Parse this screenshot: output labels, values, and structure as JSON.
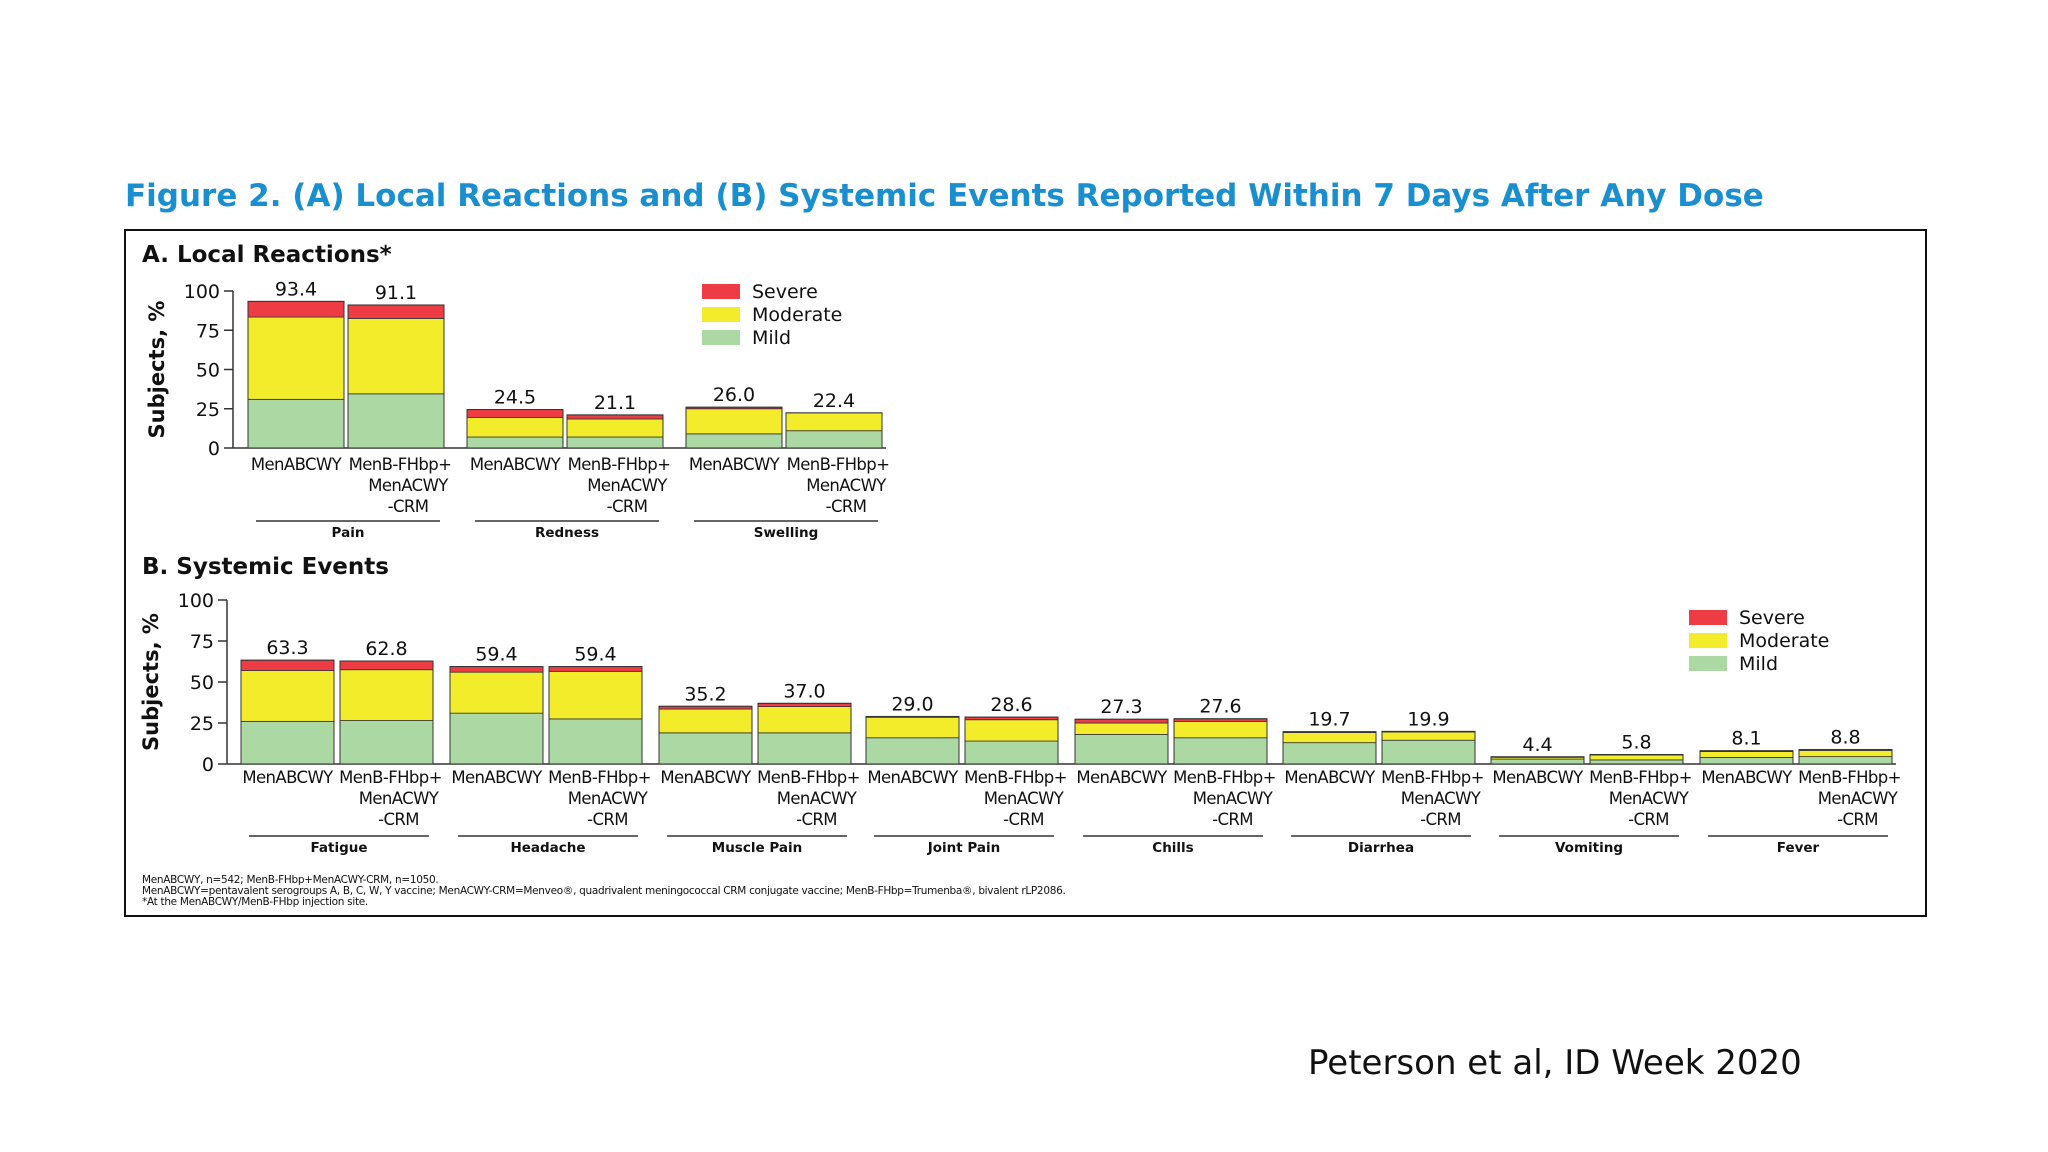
{
  "figure_title": "Figure 2. (A) Local Reactions and (B) Systemic Events Reported Within 7 Days After Any Dose",
  "citation": "Peterson et al, ID Week 2020",
  "colors": {
    "severe": "#ee3c45",
    "moderate": "#f2ec2b",
    "mild": "#acd8a3",
    "title": "#1a8fd0"
  },
  "legend": [
    "Severe",
    "Moderate",
    "Mild"
  ],
  "footnotes": [
    "MenABCWY, n=542; MenB-FHbp+MenACWY-CRM, n=1050.",
    "MenABCWY=pentavalent serogroups A, B, C, W, Y vaccine; MenACWY-CRM=Menveo®, quadrivalent meningococcal CRM conjugate vaccine; MenB-FHbp=Trumenba®, bivalent rLP2086.",
    "*At the MenABCWY/MenB-FHbp injection site."
  ],
  "chart_data": [
    {
      "type": "bar",
      "stacked": true,
      "title": "A. Local Reactions*",
      "ylabel": "Subjects, %",
      "ylim": [
        0,
        100
      ],
      "yticks": [
        0,
        25,
        50,
        75,
        100
      ],
      "legend_position": "top-center",
      "bar_labels": [
        "MenABCWY",
        "MenB-FHbp+\nMenACWY\n-CRM"
      ],
      "groups": [
        {
          "name": "Pain",
          "bars": [
            {
              "total": "93.4",
              "mild": 31,
              "moderate": 52.4,
              "severe": 10
            },
            {
              "total": "91.1",
              "mild": 34.5,
              "moderate": 48,
              "severe": 8.6
            }
          ]
        },
        {
          "name": "Redness",
          "bars": [
            {
              "total": "24.5",
              "mild": 7,
              "moderate": 12.5,
              "severe": 5
            },
            {
              "total": "21.1",
              "mild": 7,
              "moderate": 11.5,
              "severe": 2.6
            }
          ]
        },
        {
          "name": "Swelling",
          "bars": [
            {
              "total": "26.0",
              "mild": 9,
              "moderate": 16,
              "severe": 1
            },
            {
              "total": "22.4",
              "mild": 11,
              "moderate": 11.4,
              "severe": 0
            }
          ]
        }
      ]
    },
    {
      "type": "bar",
      "stacked": true,
      "title": "B. Systemic Events",
      "ylabel": "Subjects, %",
      "ylim": [
        0,
        100
      ],
      "yticks": [
        0,
        25,
        50,
        75,
        100
      ],
      "legend_position": "top-right",
      "bar_labels": [
        "MenABCWY",
        "MenB-FHbp+\nMenACWY\n-CRM"
      ],
      "groups": [
        {
          "name": "Fatigue",
          "bars": [
            {
              "total": "63.3",
              "mild": 26,
              "moderate": 31,
              "severe": 6.3
            },
            {
              "total": "62.8",
              "mild": 26.5,
              "moderate": 31,
              "severe": 5.3
            }
          ]
        },
        {
          "name": "Headache",
          "bars": [
            {
              "total": "59.4",
              "mild": 31,
              "moderate": 25,
              "severe": 3.4
            },
            {
              "total": "59.4",
              "mild": 27.5,
              "moderate": 29,
              "severe": 2.9
            }
          ]
        },
        {
          "name": "Muscle Pain",
          "bars": [
            {
              "total": "35.2",
              "mild": 19,
              "moderate": 14.5,
              "severe": 1.7
            },
            {
              "total": "37.0",
              "mild": 19,
              "moderate": 16,
              "severe": 2
            }
          ]
        },
        {
          "name": "Joint Pain",
          "bars": [
            {
              "total": "29.0",
              "mild": 16,
              "moderate": 12.5,
              "severe": 0.5
            },
            {
              "total": "28.6",
              "mild": 14,
              "moderate": 13,
              "severe": 1.6
            }
          ]
        },
        {
          "name": "Chills",
          "bars": [
            {
              "total": "27.3",
              "mild": 18,
              "moderate": 7,
              "severe": 2.3
            },
            {
              "total": "27.6",
              "mild": 16,
              "moderate": 10,
              "severe": 1.6
            }
          ]
        },
        {
          "name": "Diarrhea",
          "bars": [
            {
              "total": "19.7",
              "mild": 13,
              "moderate": 6.2,
              "severe": 0.5
            },
            {
              "total": "19.9",
              "mild": 14.5,
              "moderate": 5,
              "severe": 0.4
            }
          ]
        },
        {
          "name": "Vomiting",
          "bars": [
            {
              "total": "4.4",
              "mild": 3,
              "moderate": 1.1,
              "severe": 0.3
            },
            {
              "total": "5.8",
              "mild": 2.5,
              "moderate": 3,
              "severe": 0.3
            }
          ]
        },
        {
          "name": "Fever",
          "bars": [
            {
              "total": "8.1",
              "mild": 4,
              "moderate": 3.6,
              "severe": 0.5
            },
            {
              "total": "8.8",
              "mild": 4.5,
              "moderate": 3.8,
              "severe": 0.5
            }
          ]
        }
      ]
    }
  ]
}
